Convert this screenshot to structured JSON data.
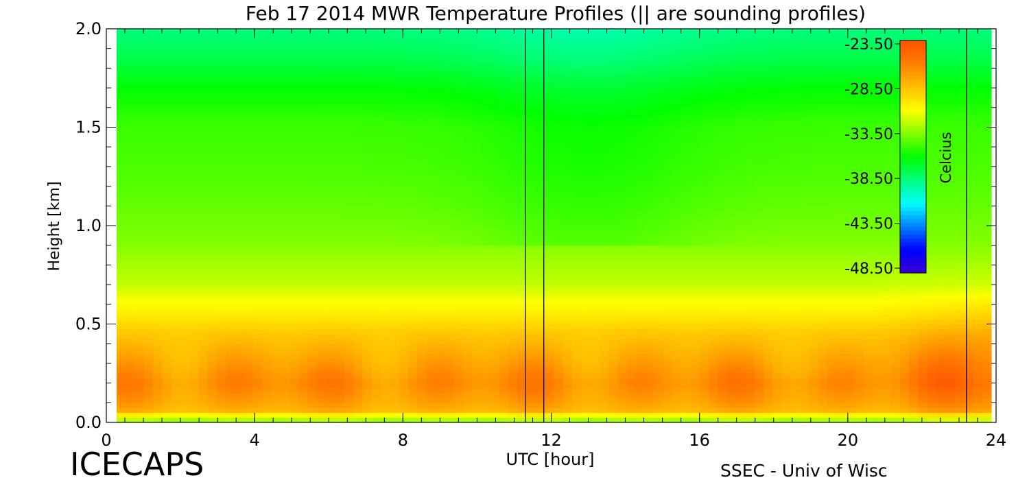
{
  "chart_data": {
    "type": "heatmap",
    "title": "Feb 17 2014 MWR Temperature Profiles (|| are sounding profiles)",
    "xlabel": "UTC [hour]",
    "ylabel": "Height [km]",
    "xlim": [
      0,
      24
    ],
    "ylim": [
      0,
      2
    ],
    "x_ticks": [
      "0",
      "4",
      "8",
      "12",
      "16",
      "20",
      "24"
    ],
    "y_ticks": [
      "0.0",
      "0.5",
      "1.0",
      "1.5",
      "2.0"
    ],
    "sounding_profiles_utc": [
      11.3,
      11.8,
      23.2
    ],
    "colorbar": {
      "label": "Celcius",
      "ticks": [
        "-23.50",
        "-28.50",
        "-33.50",
        "-38.50",
        "-43.50",
        "-48.50"
      ],
      "range": [
        -48.5,
        -22.5
      ],
      "colors": [
        "#3a00d0",
        "#0000ff",
        "#0080ff",
        "#00ffff",
        "#00ff80",
        "#00ff00",
        "#80ff00",
        "#ffff00",
        "#ffc000",
        "#ff8000",
        "#ff5000"
      ]
    },
    "profile": {
      "heights_km": [
        0.0,
        0.02,
        0.05,
        0.1,
        0.2,
        0.3,
        0.45,
        0.55,
        0.7,
        0.9,
        1.1,
        1.3,
        1.5,
        1.7,
        1.85,
        2.0
      ],
      "temps_c": [
        -29.5,
        -33.5,
        -27.5,
        -26.5,
        -25.5,
        -26.5,
        -28.0,
        -29.5,
        -31.5,
        -32.8,
        -33.5,
        -34.0,
        -34.3,
        -35.5,
        -37.0,
        -38.0
      ]
    }
  },
  "footer": {
    "left": "ICECAPS",
    "right": "SSEC - Univ of Wisc"
  }
}
